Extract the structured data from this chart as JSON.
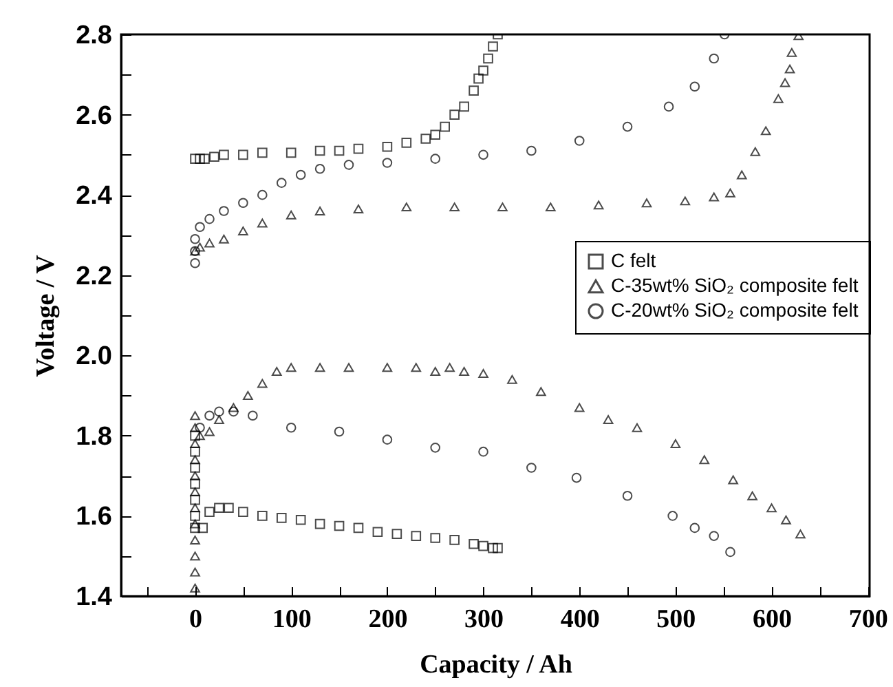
{
  "chart_data": {
    "type": "scatter",
    "xlabel": "Capacity / Ah",
    "ylabel": "Voltage / V",
    "xlim": [
      -77,
      702
    ],
    "xticks": [
      0,
      100,
      200,
      300,
      400,
      500,
      600,
      700,
      {
        "value": -50,
        "label": null
      },
      {
        "value": 50,
        "label": null
      },
      {
        "value": 150,
        "label": null
      },
      {
        "value": 250,
        "label": null
      },
      {
        "value": 350,
        "label": null
      },
      {
        "value": 450,
        "label": null
      },
      {
        "value": 550,
        "label": null
      },
      {
        "value": 650,
        "label": null
      }
    ],
    "ylim": [
      1.4,
      2.8
    ],
    "yticks": [
      1.4,
      1.6,
      1.8,
      {
        "value": 2,
        "label": "2.0"
      },
      2.2,
      2.4,
      2.6,
      2.8,
      {
        "value": 1.5,
        "label": null
      },
      {
        "value": 1.7,
        "label": null
      },
      {
        "value": 1.9,
        "label": null
      },
      {
        "value": 2.1,
        "label": null
      },
      {
        "value": 2.3,
        "label": null
      },
      {
        "value": 2.5,
        "label": null
      },
      {
        "value": 2.7,
        "label": null
      }
    ],
    "grid": false,
    "legend": "right",
    "series": [
      {
        "name": "C felt",
        "color": "#000000",
        "marker": "square",
        "x": [
          0,
          5,
          10,
          20,
          30,
          50,
          70,
          100,
          130,
          150,
          170,
          200,
          220,
          240,
          250,
          260,
          270,
          280,
          290,
          295,
          300,
          305,
          310,
          315,
          0,
          0,
          0,
          0,
          0,
          0,
          0,
          8,
          15,
          25,
          35,
          50,
          70,
          90,
          110,
          130,
          150,
          170,
          190,
          210,
          230,
          250,
          270,
          290,
          300,
          310,
          315
        ],
        "values": [
          2.49,
          2.49,
          2.49,
          2.495,
          2.5,
          2.5,
          2.505,
          2.505,
          2.51,
          2.51,
          2.515,
          2.52,
          2.53,
          2.54,
          2.55,
          2.57,
          2.6,
          2.62,
          2.66,
          2.69,
          2.71,
          2.74,
          2.77,
          2.8,
          1.8,
          1.76,
          1.72,
          1.68,
          1.64,
          1.6,
          1.57,
          1.57,
          1.61,
          1.62,
          1.62,
          1.61,
          1.6,
          1.595,
          1.59,
          1.58,
          1.575,
          1.57,
          1.56,
          1.555,
          1.55,
          1.545,
          1.54,
          1.53,
          1.525,
          1.52,
          1.52
        ]
      },
      {
        "name": "C-35wt% SiO₂ composite felt",
        "color": "#000000",
        "marker": "triangle",
        "x": [
          0,
          0,
          0,
          0,
          0,
          0,
          0,
          0,
          0,
          0,
          0,
          0,
          5,
          15,
          25,
          40,
          55,
          70,
          85,
          100,
          130,
          160,
          200,
          230,
          250,
          265,
          280,
          300,
          330,
          360,
          400,
          430,
          460,
          500,
          530,
          560,
          580,
          600,
          615,
          630,
          0,
          5,
          15,
          30,
          50,
          70,
          100,
          130,
          170,
          220,
          270,
          320,
          370,
          420,
          470,
          510,
          540,
          557,
          569,
          583,
          594,
          607,
          614,
          619,
          621,
          628
        ],
        "values": [
          1.42,
          1.46,
          1.5,
          1.54,
          1.58,
          1.62,
          1.66,
          1.7,
          1.74,
          1.78,
          1.82,
          1.85,
          1.8,
          1.81,
          1.84,
          1.87,
          1.9,
          1.93,
          1.96,
          1.97,
          1.97,
          1.97,
          1.97,
          1.97,
          1.96,
          1.97,
          1.96,
          1.955,
          1.94,
          1.91,
          1.87,
          1.84,
          1.82,
          1.78,
          1.74,
          1.69,
          1.65,
          1.62,
          1.59,
          1.555,
          2.26,
          2.27,
          2.28,
          2.29,
          2.31,
          2.33,
          2.35,
          2.36,
          2.365,
          2.37,
          2.37,
          2.37,
          2.37,
          2.375,
          2.38,
          2.385,
          2.395,
          2.405,
          2.45,
          2.508,
          2.56,
          2.64,
          2.68,
          2.714,
          2.755,
          2.797
        ]
      },
      {
        "name": "C-20wt% SiO₂ composite felt",
        "color": "#000000",
        "marker": "circle",
        "x": [
          0,
          0,
          0,
          5,
          15,
          30,
          50,
          70,
          90,
          110,
          130,
          160,
          200,
          250,
          300,
          350,
          400,
          450,
          493,
          520,
          540,
          551,
          5,
          15,
          25,
          40,
          60,
          100,
          150,
          200,
          250,
          300,
          350,
          397,
          450,
          497,
          520,
          540,
          557
        ],
        "values": [
          2.23,
          2.26,
          2.29,
          2.32,
          2.34,
          2.36,
          2.38,
          2.4,
          2.43,
          2.45,
          2.465,
          2.475,
          2.48,
          2.49,
          2.5,
          2.51,
          2.535,
          2.57,
          2.62,
          2.67,
          2.74,
          2.8,
          1.82,
          1.85,
          1.86,
          1.86,
          1.85,
          1.82,
          1.81,
          1.79,
          1.77,
          1.76,
          1.72,
          1.695,
          1.65,
          1.6,
          1.57,
          1.55,
          1.51
        ]
      }
    ]
  }
}
